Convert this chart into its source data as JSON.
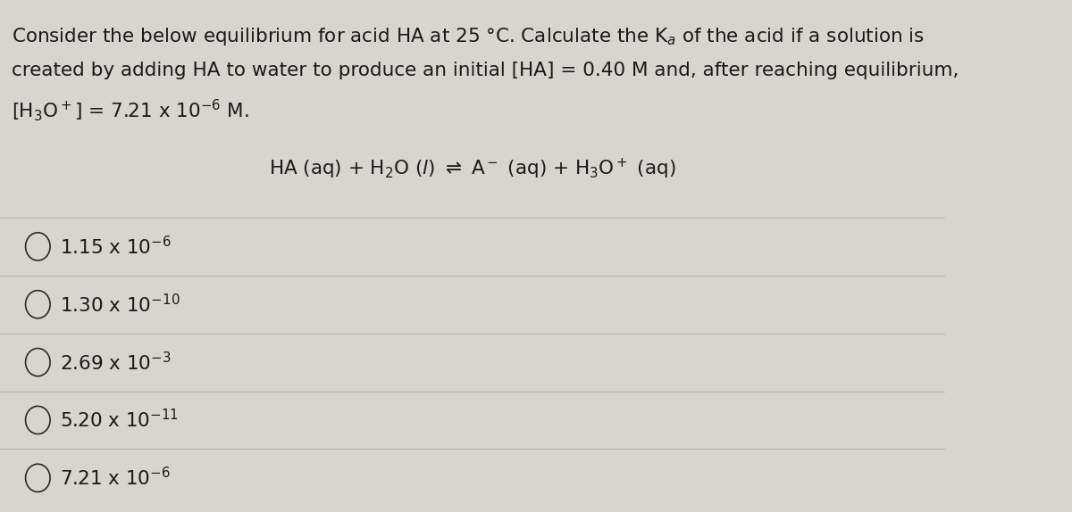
{
  "background_color": "#d8d5d0",
  "question_line1": "Consider the below equilibrium for acid HA at 25 °C. Calculate the K",
  "question_line1_sub": "a",
  "question_line1_end": " of the acid if a solution is",
  "question_line2": "created by adding HA to water to produce an initial [HA] = 0.40 M and, after reaching equilibrium,",
  "question_line3_start": "[H",
  "question_line3_sub": "3",
  "question_line3_mid": "O",
  "question_line3_sup": "+",
  "question_line3_end": "] = 7.21 x 10",
  "question_line3_exp": "−6",
  "question_line3_last": " M.",
  "equation": "HA (aq) + H$_2$O ($l$) $\\rightleftharpoons$ A$^-$ (aq) + H$_3$O$^+$ (aq)",
  "choices": [
    "1.15 x 10$^{-6}$",
    "1.30 x 10$^{-10}$",
    "2.69 x 10$^{-3}$",
    "5.20 x 10$^{-11}$",
    "7.21 x 10$^{-6}$"
  ],
  "font_size_question": 15.5,
  "font_size_equation": 15.5,
  "font_size_choices": 15.5,
  "text_color": "#1a1a1a",
  "line_color": "#b8b5b0",
  "circle_color": "#2a2a2a",
  "q1_plain": "Consider the below equilibrium for acid HA at 25 °C. Calculate the K$_a$ of the acid if a solution is",
  "q2_plain": "created by adding HA to water to produce an initial [HA] = 0.40 M and, after reaching equilibrium,",
  "q3_plain": "[H$_3$O$^+$] = 7.21 x 10$^{-6}$ M."
}
